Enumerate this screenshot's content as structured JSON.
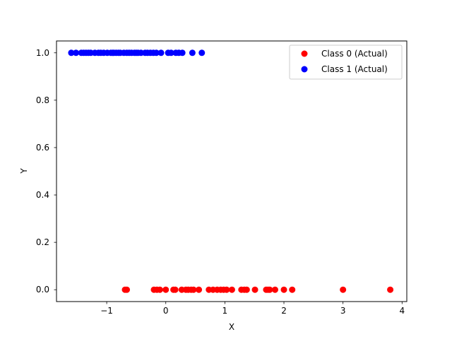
{
  "chart_data": {
    "type": "scatter",
    "title": "",
    "xlabel": "X",
    "ylabel": "Y",
    "xlim": [
      -1.85,
      4.08
    ],
    "ylim": [
      -0.05,
      1.05
    ],
    "xticks": [
      -1,
      0,
      1,
      2,
      3,
      4
    ],
    "xtick_labels": [
      "−1",
      "0",
      "1",
      "2",
      "3",
      "4"
    ],
    "yticks": [
      0.0,
      0.2,
      0.4,
      0.6,
      0.8,
      1.0
    ],
    "ytick_labels": [
      "0.0",
      "0.2",
      "0.4",
      "0.6",
      "0.8",
      "1.0"
    ],
    "grid": false,
    "legend_position": "top-right",
    "series": [
      {
        "name": "Class 0 (Actual)",
        "color": "#ff0000",
        "marker": "circle",
        "points": [
          [
            -0.69,
            0
          ],
          [
            -0.66,
            0
          ],
          [
            -0.2,
            0
          ],
          [
            -0.15,
            0
          ],
          [
            -0.1,
            0
          ],
          [
            0.0,
            0
          ],
          [
            0.13,
            0
          ],
          [
            0.16,
            0
          ],
          [
            0.27,
            0
          ],
          [
            0.34,
            0
          ],
          [
            0.38,
            0
          ],
          [
            0.43,
            0
          ],
          [
            0.47,
            0
          ],
          [
            0.56,
            0
          ],
          [
            0.73,
            0
          ],
          [
            0.8,
            0
          ],
          [
            0.87,
            0
          ],
          [
            0.93,
            0
          ],
          [
            0.98,
            0
          ],
          [
            1.03,
            0
          ],
          [
            1.12,
            0
          ],
          [
            1.28,
            0
          ],
          [
            1.33,
            0
          ],
          [
            1.37,
            0
          ],
          [
            1.51,
            0
          ],
          [
            1.7,
            0
          ],
          [
            1.73,
            0
          ],
          [
            1.76,
            0
          ],
          [
            1.85,
            0
          ],
          [
            2.0,
            0
          ],
          [
            2.14,
            0
          ],
          [
            3.0,
            0
          ],
          [
            3.8,
            0
          ]
        ]
      },
      {
        "name": "Class 1 (Actual)",
        "color": "#0000ff",
        "marker": "circle",
        "points": [
          [
            -1.6,
            1
          ],
          [
            -1.52,
            1
          ],
          [
            -1.43,
            1
          ],
          [
            -1.39,
            1
          ],
          [
            -1.35,
            1
          ],
          [
            -1.31,
            1
          ],
          [
            -1.27,
            1
          ],
          [
            -1.2,
            1
          ],
          [
            -1.14,
            1
          ],
          [
            -1.1,
            1
          ],
          [
            -1.05,
            1
          ],
          [
            -0.99,
            1
          ],
          [
            -0.93,
            1
          ],
          [
            -0.9,
            1
          ],
          [
            -0.88,
            1
          ],
          [
            -0.84,
            1
          ],
          [
            -0.8,
            1
          ],
          [
            -0.77,
            1
          ],
          [
            -0.71,
            1
          ],
          [
            -0.66,
            1
          ],
          [
            -0.62,
            1
          ],
          [
            -0.58,
            1
          ],
          [
            -0.53,
            1
          ],
          [
            -0.5,
            1
          ],
          [
            -0.47,
            1
          ],
          [
            -0.42,
            1
          ],
          [
            -0.35,
            1
          ],
          [
            -0.31,
            1
          ],
          [
            -0.26,
            1
          ],
          [
            -0.21,
            1
          ],
          [
            -0.16,
            1
          ],
          [
            -0.08,
            1
          ],
          [
            0.04,
            1
          ],
          [
            0.09,
            1
          ],
          [
            0.17,
            1
          ],
          [
            0.22,
            1
          ],
          [
            0.28,
            1
          ],
          [
            0.45,
            1
          ],
          [
            0.61,
            1
          ]
        ]
      }
    ]
  }
}
